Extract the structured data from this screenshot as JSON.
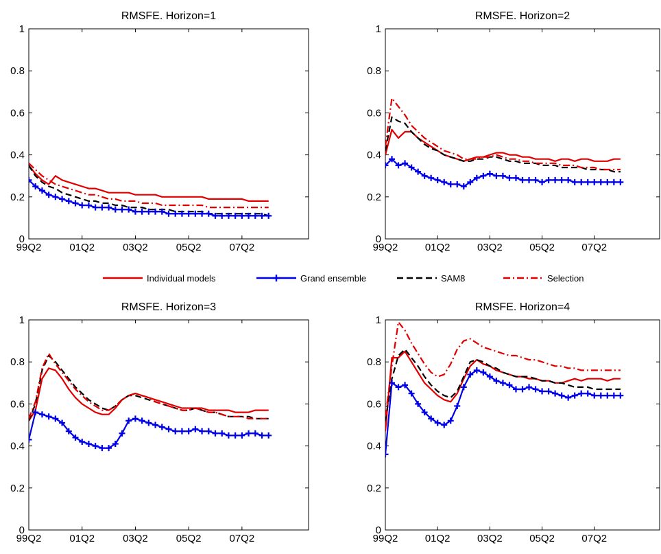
{
  "chart_data": [
    {
      "type": "line",
      "title": "RMSFE. Horizon=1",
      "xlabel": "",
      "ylabel": "",
      "ylim": [
        0,
        1
      ],
      "yticks": [
        "0",
        "0.2",
        "0.4",
        "0.6",
        "0.8",
        "1"
      ],
      "xticks": [
        "99Q2",
        "01Q2",
        "03Q2",
        "05Q2",
        "07Q2"
      ],
      "x": [
        "99Q2",
        "99Q3",
        "99Q4",
        "00Q1",
        "00Q2",
        "00Q3",
        "00Q4",
        "01Q1",
        "01Q2",
        "01Q3",
        "01Q4",
        "02Q1",
        "02Q2",
        "02Q3",
        "02Q4",
        "03Q1",
        "03Q2",
        "03Q3",
        "03Q4",
        "04Q1",
        "04Q2",
        "04Q3",
        "04Q4",
        "05Q1",
        "05Q2",
        "05Q3",
        "05Q4",
        "06Q1",
        "06Q2",
        "06Q3",
        "06Q4",
        "07Q1",
        "07Q2",
        "07Q3",
        "07Q4",
        "08Q1",
        "08Q2"
      ],
      "series": [
        {
          "name": "Individual models",
          "values": [
            0.35,
            0.31,
            0.28,
            0.26,
            0.3,
            0.28,
            0.27,
            0.26,
            0.25,
            0.24,
            0.24,
            0.23,
            0.22,
            0.22,
            0.22,
            0.22,
            0.21,
            0.21,
            0.21,
            0.21,
            0.2,
            0.2,
            0.2,
            0.2,
            0.2,
            0.2,
            0.2,
            0.19,
            0.19,
            0.19,
            0.19,
            0.19,
            0.19,
            0.18,
            0.18,
            0.18,
            0.18
          ]
        },
        {
          "name": "Grand ensemble",
          "values": [
            0.28,
            0.25,
            0.23,
            0.21,
            0.2,
            0.19,
            0.18,
            0.17,
            0.16,
            0.16,
            0.15,
            0.15,
            0.15,
            0.14,
            0.14,
            0.14,
            0.13,
            0.13,
            0.13,
            0.13,
            0.13,
            0.12,
            0.12,
            0.12,
            0.12,
            0.12,
            0.12,
            0.12,
            0.11,
            0.11,
            0.11,
            0.11,
            0.11,
            0.11,
            0.11,
            0.11,
            0.11
          ]
        },
        {
          "name": "SAM8",
          "values": [
            0.35,
            0.3,
            0.27,
            0.25,
            0.24,
            0.22,
            0.21,
            0.2,
            0.19,
            0.18,
            0.18,
            0.17,
            0.17,
            0.16,
            0.16,
            0.15,
            0.15,
            0.15,
            0.14,
            0.14,
            0.14,
            0.14,
            0.13,
            0.13,
            0.13,
            0.13,
            0.13,
            0.12,
            0.12,
            0.12,
            0.12,
            0.12,
            0.12,
            0.12,
            0.12,
            0.12,
            0.11
          ]
        },
        {
          "name": "Selection",
          "values": [
            0.36,
            0.33,
            0.3,
            0.28,
            0.26,
            0.25,
            0.24,
            0.23,
            0.22,
            0.21,
            0.21,
            0.2,
            0.19,
            0.19,
            0.18,
            0.18,
            0.18,
            0.17,
            0.17,
            0.17,
            0.16,
            0.16,
            0.16,
            0.16,
            0.16,
            0.16,
            0.16,
            0.15,
            0.15,
            0.15,
            0.15,
            0.15,
            0.15,
            0.15,
            0.15,
            0.15,
            0.15
          ]
        }
      ]
    },
    {
      "type": "line",
      "title": "RMSFE. Horizon=2",
      "xlabel": "",
      "ylabel": "",
      "ylim": [
        0,
        1
      ],
      "yticks": [
        "0",
        "0.2",
        "0.4",
        "0.6",
        "0.8",
        "1"
      ],
      "xticks": [
        "99Q2",
        "01Q2",
        "03Q2",
        "05Q2",
        "07Q2"
      ],
      "x": [
        "99Q2",
        "99Q3",
        "99Q4",
        "00Q1",
        "00Q2",
        "00Q3",
        "00Q4",
        "01Q1",
        "01Q2",
        "01Q3",
        "01Q4",
        "02Q1",
        "02Q2",
        "02Q3",
        "02Q4",
        "03Q1",
        "03Q2",
        "03Q3",
        "03Q4",
        "04Q1",
        "04Q2",
        "04Q3",
        "04Q4",
        "05Q1",
        "05Q2",
        "05Q3",
        "05Q4",
        "06Q1",
        "06Q2",
        "06Q3",
        "06Q4",
        "07Q1",
        "07Q2",
        "07Q3",
        "07Q4",
        "08Q1",
        "08Q2"
      ],
      "series": [
        {
          "name": "Individual models",
          "values": [
            0.4,
            0.52,
            0.48,
            0.51,
            0.51,
            0.48,
            0.46,
            0.44,
            0.42,
            0.4,
            0.39,
            0.38,
            0.37,
            0.38,
            0.39,
            0.39,
            0.4,
            0.41,
            0.41,
            0.4,
            0.4,
            0.39,
            0.39,
            0.38,
            0.38,
            0.38,
            0.37,
            0.38,
            0.38,
            0.37,
            0.38,
            0.38,
            0.37,
            0.37,
            0.37,
            0.38,
            0.38
          ]
        },
        {
          "name": "Grand ensemble",
          "values": [
            0.35,
            0.38,
            0.35,
            0.36,
            0.34,
            0.32,
            0.3,
            0.29,
            0.28,
            0.27,
            0.26,
            0.26,
            0.25,
            0.27,
            0.29,
            0.3,
            0.31,
            0.3,
            0.3,
            0.29,
            0.29,
            0.28,
            0.28,
            0.28,
            0.27,
            0.28,
            0.28,
            0.28,
            0.28,
            0.27,
            0.27,
            0.27,
            0.27,
            0.27,
            0.27,
            0.27,
            0.27
          ]
        },
        {
          "name": "SAM8",
          "values": [
            0.42,
            0.58,
            0.56,
            0.55,
            0.51,
            0.48,
            0.45,
            0.43,
            0.42,
            0.4,
            0.39,
            0.38,
            0.37,
            0.37,
            0.38,
            0.38,
            0.39,
            0.39,
            0.38,
            0.37,
            0.37,
            0.36,
            0.36,
            0.36,
            0.35,
            0.35,
            0.35,
            0.34,
            0.34,
            0.34,
            0.34,
            0.33,
            0.33,
            0.33,
            0.33,
            0.32,
            0.32
          ]
        },
        {
          "name": "Selection",
          "values": [
            0.44,
            0.67,
            0.63,
            0.59,
            0.54,
            0.51,
            0.48,
            0.46,
            0.44,
            0.42,
            0.41,
            0.4,
            0.38,
            0.38,
            0.38,
            0.39,
            0.39,
            0.4,
            0.39,
            0.38,
            0.38,
            0.37,
            0.37,
            0.36,
            0.36,
            0.36,
            0.36,
            0.35,
            0.35,
            0.35,
            0.34,
            0.34,
            0.34,
            0.33,
            0.33,
            0.33,
            0.33
          ]
        }
      ]
    },
    {
      "type": "line",
      "title": "RMSFE. Horizon=3",
      "xlabel": "",
      "ylabel": "",
      "ylim": [
        0,
        1
      ],
      "yticks": [
        "0",
        "0.2",
        "0.4",
        "0.6",
        "0.8",
        "1"
      ],
      "xticks": [
        "99Q2",
        "01Q2",
        "03Q2",
        "05Q2",
        "07Q2"
      ],
      "x": [
        "99Q2",
        "99Q3",
        "99Q4",
        "00Q1",
        "00Q2",
        "00Q3",
        "00Q4",
        "01Q1",
        "01Q2",
        "01Q3",
        "01Q4",
        "02Q1",
        "02Q2",
        "02Q3",
        "02Q4",
        "03Q1",
        "03Q2",
        "03Q3",
        "03Q4",
        "04Q1",
        "04Q2",
        "04Q3",
        "04Q4",
        "05Q1",
        "05Q2",
        "05Q3",
        "05Q4",
        "06Q1",
        "06Q2",
        "06Q3",
        "06Q4",
        "07Q1",
        "07Q2",
        "07Q3",
        "07Q4",
        "08Q1",
        "08Q2"
      ],
      "series": [
        {
          "name": "Individual models",
          "values": [
            0.52,
            0.57,
            0.72,
            0.77,
            0.76,
            0.72,
            0.67,
            0.63,
            0.6,
            0.58,
            0.56,
            0.55,
            0.55,
            0.58,
            0.62,
            0.64,
            0.65,
            0.64,
            0.63,
            0.62,
            0.61,
            0.6,
            0.59,
            0.58,
            0.58,
            0.58,
            0.58,
            0.57,
            0.57,
            0.57,
            0.57,
            0.56,
            0.56,
            0.56,
            0.57,
            0.57,
            0.57
          ]
        },
        {
          "name": "Grand ensemble",
          "values": [
            0.43,
            0.56,
            0.55,
            0.54,
            0.53,
            0.51,
            0.47,
            0.44,
            0.42,
            0.41,
            0.4,
            0.39,
            0.39,
            0.41,
            0.46,
            0.52,
            0.53,
            0.52,
            0.51,
            0.5,
            0.49,
            0.48,
            0.47,
            0.47,
            0.47,
            0.48,
            0.47,
            0.47,
            0.46,
            0.46,
            0.45,
            0.45,
            0.45,
            0.46,
            0.46,
            0.45,
            0.45
          ]
        },
        {
          "name": "SAM8",
          "values": [
            0.52,
            0.6,
            0.76,
            0.83,
            0.8,
            0.76,
            0.72,
            0.68,
            0.65,
            0.62,
            0.6,
            0.58,
            0.57,
            0.59,
            0.62,
            0.64,
            0.64,
            0.63,
            0.62,
            0.61,
            0.6,
            0.59,
            0.58,
            0.57,
            0.57,
            0.58,
            0.57,
            0.56,
            0.56,
            0.55,
            0.54,
            0.54,
            0.54,
            0.54,
            0.53,
            0.53,
            0.53
          ]
        },
        {
          "name": "Selection",
          "values": [
            0.53,
            0.61,
            0.77,
            0.84,
            0.79,
            0.75,
            0.71,
            0.67,
            0.64,
            0.61,
            0.59,
            0.57,
            0.57,
            0.59,
            0.62,
            0.64,
            0.65,
            0.64,
            0.63,
            0.61,
            0.6,
            0.59,
            0.58,
            0.57,
            0.57,
            0.58,
            0.57,
            0.56,
            0.56,
            0.55,
            0.54,
            0.54,
            0.54,
            0.53,
            0.53,
            0.53,
            0.53
          ]
        }
      ]
    },
    {
      "type": "line",
      "title": "RMSFE. Horizon=4",
      "xlabel": "",
      "ylabel": "",
      "ylim": [
        0,
        1
      ],
      "yticks": [
        "0",
        "0.2",
        "0.4",
        "0.6",
        "0.8",
        "1"
      ],
      "xticks": [
        "99Q2",
        "01Q2",
        "03Q2",
        "05Q2",
        "07Q2"
      ],
      "x": [
        "99Q2",
        "99Q3",
        "99Q4",
        "00Q1",
        "00Q2",
        "00Q3",
        "00Q4",
        "01Q1",
        "01Q2",
        "01Q3",
        "01Q4",
        "02Q1",
        "02Q2",
        "02Q3",
        "02Q4",
        "03Q1",
        "03Q2",
        "03Q3",
        "03Q4",
        "04Q1",
        "04Q2",
        "04Q3",
        "04Q4",
        "05Q1",
        "05Q2",
        "05Q3",
        "05Q4",
        "06Q1",
        "06Q2",
        "06Q3",
        "06Q4",
        "07Q1",
        "07Q2",
        "07Q3",
        "07Q4",
        "08Q1",
        "08Q2"
      ],
      "series": [
        {
          "name": "Individual models",
          "values": [
            0.47,
            0.82,
            0.82,
            0.85,
            0.8,
            0.75,
            0.7,
            0.67,
            0.64,
            0.62,
            0.61,
            0.65,
            0.72,
            0.78,
            0.81,
            0.79,
            0.78,
            0.76,
            0.75,
            0.74,
            0.73,
            0.73,
            0.72,
            0.72,
            0.71,
            0.71,
            0.7,
            0.7,
            0.71,
            0.72,
            0.71,
            0.72,
            0.72,
            0.72,
            0.71,
            0.72,
            0.72
          ]
        },
        {
          "name": "Grand ensemble",
          "values": [
            0.36,
            0.7,
            0.68,
            0.69,
            0.65,
            0.6,
            0.56,
            0.53,
            0.51,
            0.5,
            0.52,
            0.59,
            0.68,
            0.74,
            0.76,
            0.75,
            0.73,
            0.71,
            0.7,
            0.69,
            0.67,
            0.67,
            0.68,
            0.67,
            0.66,
            0.66,
            0.65,
            0.64,
            0.63,
            0.64,
            0.65,
            0.65,
            0.64,
            0.64,
            0.64,
            0.64,
            0.64
          ]
        },
        {
          "name": "SAM8",
          "values": [
            0.52,
            0.72,
            0.83,
            0.86,
            0.82,
            0.78,
            0.73,
            0.69,
            0.66,
            0.64,
            0.63,
            0.66,
            0.73,
            0.8,
            0.81,
            0.8,
            0.78,
            0.77,
            0.75,
            0.74,
            0.73,
            0.73,
            0.73,
            0.72,
            0.71,
            0.71,
            0.7,
            0.7,
            0.69,
            0.68,
            0.68,
            0.68,
            0.67,
            0.67,
            0.67,
            0.67,
            0.67
          ]
        },
        {
          "name": "Selection",
          "values": [
            0.54,
            0.78,
            0.99,
            0.95,
            0.89,
            0.84,
            0.79,
            0.75,
            0.73,
            0.74,
            0.79,
            0.86,
            0.9,
            0.91,
            0.89,
            0.87,
            0.86,
            0.85,
            0.84,
            0.83,
            0.83,
            0.82,
            0.81,
            0.81,
            0.8,
            0.79,
            0.78,
            0.78,
            0.77,
            0.77,
            0.76,
            0.76,
            0.76,
            0.76,
            0.76,
            0.76,
            0.76
          ]
        }
      ]
    }
  ],
  "legend": {
    "placement": "between-rows-center",
    "items": [
      {
        "label": "Individual models",
        "color": "#e00000",
        "dash": "solid",
        "marker": ""
      },
      {
        "label": "Grand ensemble",
        "color": "#0000e6",
        "dash": "solid",
        "marker": "plus"
      },
      {
        "label": "SAM8",
        "color": "#000000",
        "dash": "dashed",
        "marker": ""
      },
      {
        "label": "Selection",
        "color": "#e00000",
        "dash": "dashdot",
        "marker": ""
      }
    ]
  },
  "styles": {
    "Individual models": {
      "color": "#e00000",
      "dash": "",
      "marker": false
    },
    "Grand ensemble": {
      "color": "#0000e6",
      "dash": "",
      "marker": true
    },
    "SAM8": {
      "color": "#000000",
      "dash": "9 5",
      "marker": false
    },
    "Selection": {
      "color": "#e00000",
      "dash": "10 4 2 4",
      "marker": false
    }
  }
}
